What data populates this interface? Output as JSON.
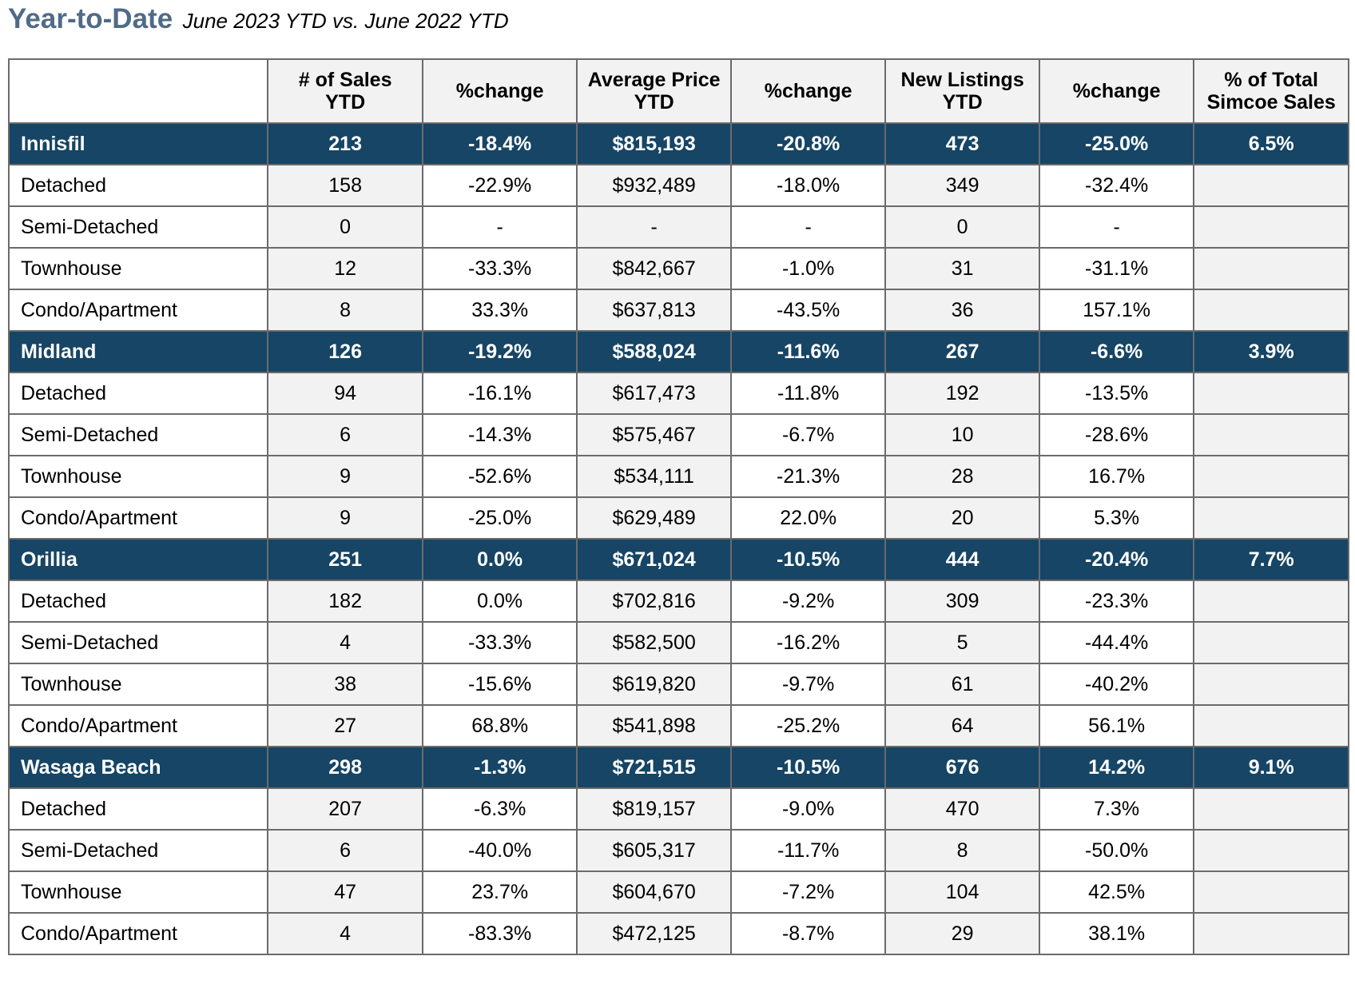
{
  "title": "Year-to-Date",
  "subtitle": "June 2023 YTD vs. June 2022 YTD",
  "columns": [
    {
      "line1": "",
      "line2": ""
    },
    {
      "line1": "# of Sales",
      "line2": "YTD"
    },
    {
      "line1": "%change",
      "line2": ""
    },
    {
      "line1": "Average Price",
      "line2": "YTD"
    },
    {
      "line1": "%change",
      "line2": ""
    },
    {
      "line1": "New Listings",
      "line2": "YTD"
    },
    {
      "line1": "%change",
      "line2": ""
    },
    {
      "line1": "% of Total",
      "line2": "Simcoe Sales"
    }
  ],
  "rows": [
    {
      "type": "group",
      "cells": [
        "Innisfil",
        "213",
        "-18.4%",
        "$815,193",
        "-20.8%",
        "473",
        "-25.0%",
        "6.5%"
      ]
    },
    {
      "type": "data",
      "cells": [
        "Detached",
        "158",
        "-22.9%",
        "$932,489",
        "-18.0%",
        "349",
        "-32.4%",
        ""
      ]
    },
    {
      "type": "data",
      "cells": [
        "Semi-Detached",
        "0",
        "-",
        "-",
        "-",
        "0",
        "-",
        ""
      ]
    },
    {
      "type": "data",
      "cells": [
        "Townhouse",
        "12",
        "-33.3%",
        "$842,667",
        "-1.0%",
        "31",
        "-31.1%",
        ""
      ]
    },
    {
      "type": "data",
      "cells": [
        "Condo/Apartment",
        "8",
        "33.3%",
        "$637,813",
        "-43.5%",
        "36",
        "157.1%",
        ""
      ]
    },
    {
      "type": "group",
      "cells": [
        "Midland",
        "126",
        "-19.2%",
        "$588,024",
        "-11.6%",
        "267",
        "-6.6%",
        "3.9%"
      ]
    },
    {
      "type": "data",
      "cells": [
        "Detached",
        "94",
        "-16.1%",
        "$617,473",
        "-11.8%",
        "192",
        "-13.5%",
        ""
      ]
    },
    {
      "type": "data",
      "cells": [
        "Semi-Detached",
        "6",
        "-14.3%",
        "$575,467",
        "-6.7%",
        "10",
        "-28.6%",
        ""
      ]
    },
    {
      "type": "data",
      "cells": [
        "Townhouse",
        "9",
        "-52.6%",
        "$534,111",
        "-21.3%",
        "28",
        "16.7%",
        ""
      ]
    },
    {
      "type": "data",
      "cells": [
        "Condo/Apartment",
        "9",
        "-25.0%",
        "$629,489",
        "22.0%",
        "20",
        "5.3%",
        ""
      ]
    },
    {
      "type": "group",
      "cells": [
        "Orillia",
        "251",
        "0.0%",
        "$671,024",
        "-10.5%",
        "444",
        "-20.4%",
        "7.7%"
      ]
    },
    {
      "type": "data",
      "cells": [
        "Detached",
        "182",
        "0.0%",
        "$702,816",
        "-9.2%",
        "309",
        "-23.3%",
        ""
      ]
    },
    {
      "type": "data",
      "cells": [
        "Semi-Detached",
        "4",
        "-33.3%",
        "$582,500",
        "-16.2%",
        "5",
        "-44.4%",
        ""
      ]
    },
    {
      "type": "data",
      "cells": [
        "Townhouse",
        "38",
        "-15.6%",
        "$619,820",
        "-9.7%",
        "61",
        "-40.2%",
        ""
      ]
    },
    {
      "type": "data",
      "cells": [
        "Condo/Apartment",
        "27",
        "68.8%",
        "$541,898",
        "-25.2%",
        "64",
        "56.1%",
        ""
      ]
    },
    {
      "type": "group",
      "cells": [
        "Wasaga Beach",
        "298",
        "-1.3%",
        "$721,515",
        "-10.5%",
        "676",
        "14.2%",
        "9.1%"
      ]
    },
    {
      "type": "data",
      "cells": [
        "Detached",
        "207",
        "-6.3%",
        "$819,157",
        "-9.0%",
        "470",
        "7.3%",
        ""
      ]
    },
    {
      "type": "data",
      "cells": [
        "Semi-Detached",
        "6",
        "-40.0%",
        "$605,317",
        "-11.7%",
        "8",
        "-50.0%",
        ""
      ]
    },
    {
      "type": "data",
      "cells": [
        "Townhouse",
        "47",
        "23.7%",
        "$604,670",
        "-7.2%",
        "104",
        "42.5%",
        ""
      ]
    },
    {
      "type": "data",
      "cells": [
        "Condo/Apartment",
        "4",
        "-83.3%",
        "$472,125",
        "-8.7%",
        "29",
        "38.1%",
        ""
      ]
    }
  ],
  "colors": {
    "group_row_bg": "#164565",
    "title": "#4f6b86",
    "shaded_cell": "#f2f2f2",
    "border": "#6b6b6b"
  }
}
